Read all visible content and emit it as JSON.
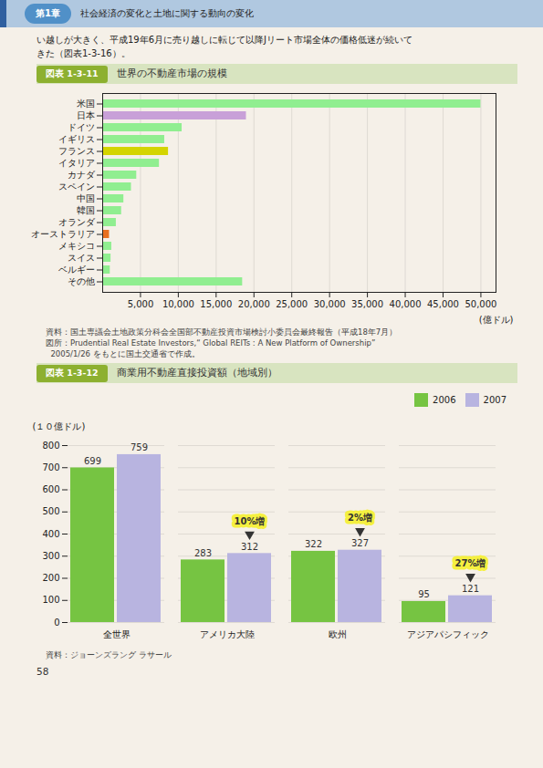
{
  "page": {
    "chapter": "第1章",
    "header": "社会経済の変化と土地に関する動向の変化",
    "body": [
      "い越しが大きく、平成19年6月に売り越しに転じて以降Jリート市場全体の価格低迷が続いて",
      "きた（図表1-3-16）。"
    ],
    "page_number": "58"
  },
  "chart_data": [
    {
      "type": "bar",
      "orientation": "horizontal",
      "figure_label": "図表 1-3-11",
      "title": "世界の不動産市場の規模",
      "categories": [
        "米国",
        "日本",
        "ドイツ",
        "イギリス",
        "フランス",
        "イタリア",
        "カナダ",
        "スペイン",
        "中国",
        "韓国",
        "オランダ",
        "オーストラリア",
        "メキシコ",
        "スイス",
        "ベルギー",
        "その他"
      ],
      "values": [
        50000,
        19000,
        10500,
        8200,
        8700,
        7500,
        4500,
        3800,
        2800,
        2500,
        1800,
        900,
        1200,
        1100,
        1000,
        18500
      ],
      "colors": [
        "#90ee90",
        "#c8a0d8",
        "#90ee90",
        "#90ee90",
        "#d4d400",
        "#90ee90",
        "#90ee90",
        "#90ee90",
        "#90ee90",
        "#90ee90",
        "#90ee90",
        "#e87020",
        "#90ee90",
        "#90ee90",
        "#90ee90",
        "#90ee90"
      ],
      "xlim": [
        0,
        52000
      ],
      "xticks": [
        {
          "value": 5000,
          "label": "5,000"
        },
        {
          "value": 10000,
          "label": "10,000"
        },
        {
          "value": 15000,
          "label": "15,000"
        },
        {
          "value": 20000,
          "label": "20,000"
        },
        {
          "value": 25000,
          "label": "25,000"
        },
        {
          "value": 30000,
          "label": "30,000"
        },
        {
          "value": 35000,
          "label": "35,000"
        },
        {
          "value": 40000,
          "label": "40,000"
        },
        {
          "value": 45000,
          "label": "45,000"
        },
        {
          "value": 50000,
          "label": "50,000"
        }
      ],
      "xlabel": "(億ドル)",
      "grid": true,
      "source": [
        "資料：国土専議会土地政策分科会全国部不動産投資市場検討小委員会最終報告（平成18年7月）",
        "図所：Prudential Real Estate Investors,“ Global REITs : A New Platform of Ownership”",
        "  2005/1/26 をもとに国土交通省で作成。"
      ]
    },
    {
      "type": "bar",
      "figure_label": "図表 1-3-12",
      "title": "商業用不動産直接投資額（地域別）",
      "categories": [
        "全世界",
        "アメリカ大陸",
        "欧州",
        "アジアパシフィック"
      ],
      "series": [
        {
          "name": "2006",
          "color": "#76c442",
          "values": [
            699,
            283,
            322,
            95
          ]
        },
        {
          "name": "2007",
          "color": "#b8b4e0",
          "values": [
            759,
            312,
            327,
            121
          ]
        }
      ],
      "ylim": [
        0,
        800
      ],
      "yticks": [
        0,
        100,
        200,
        300,
        400,
        500,
        600,
        700,
        800
      ],
      "ylabel": "(１０億ドル)",
      "grid": true,
      "legend": "upper right",
      "data_labels": true,
      "annotations": [
        {
          "text": "10%増",
          "category": "アメリカ大陸",
          "series": "2007"
        },
        {
          "text": "2%増",
          "category": "欧州",
          "series": "2007"
        },
        {
          "text": "27%増",
          "category": "アジアパシフィック",
          "series": "2007"
        }
      ],
      "source": "資料：ジョーンズラング ラサール"
    }
  ]
}
